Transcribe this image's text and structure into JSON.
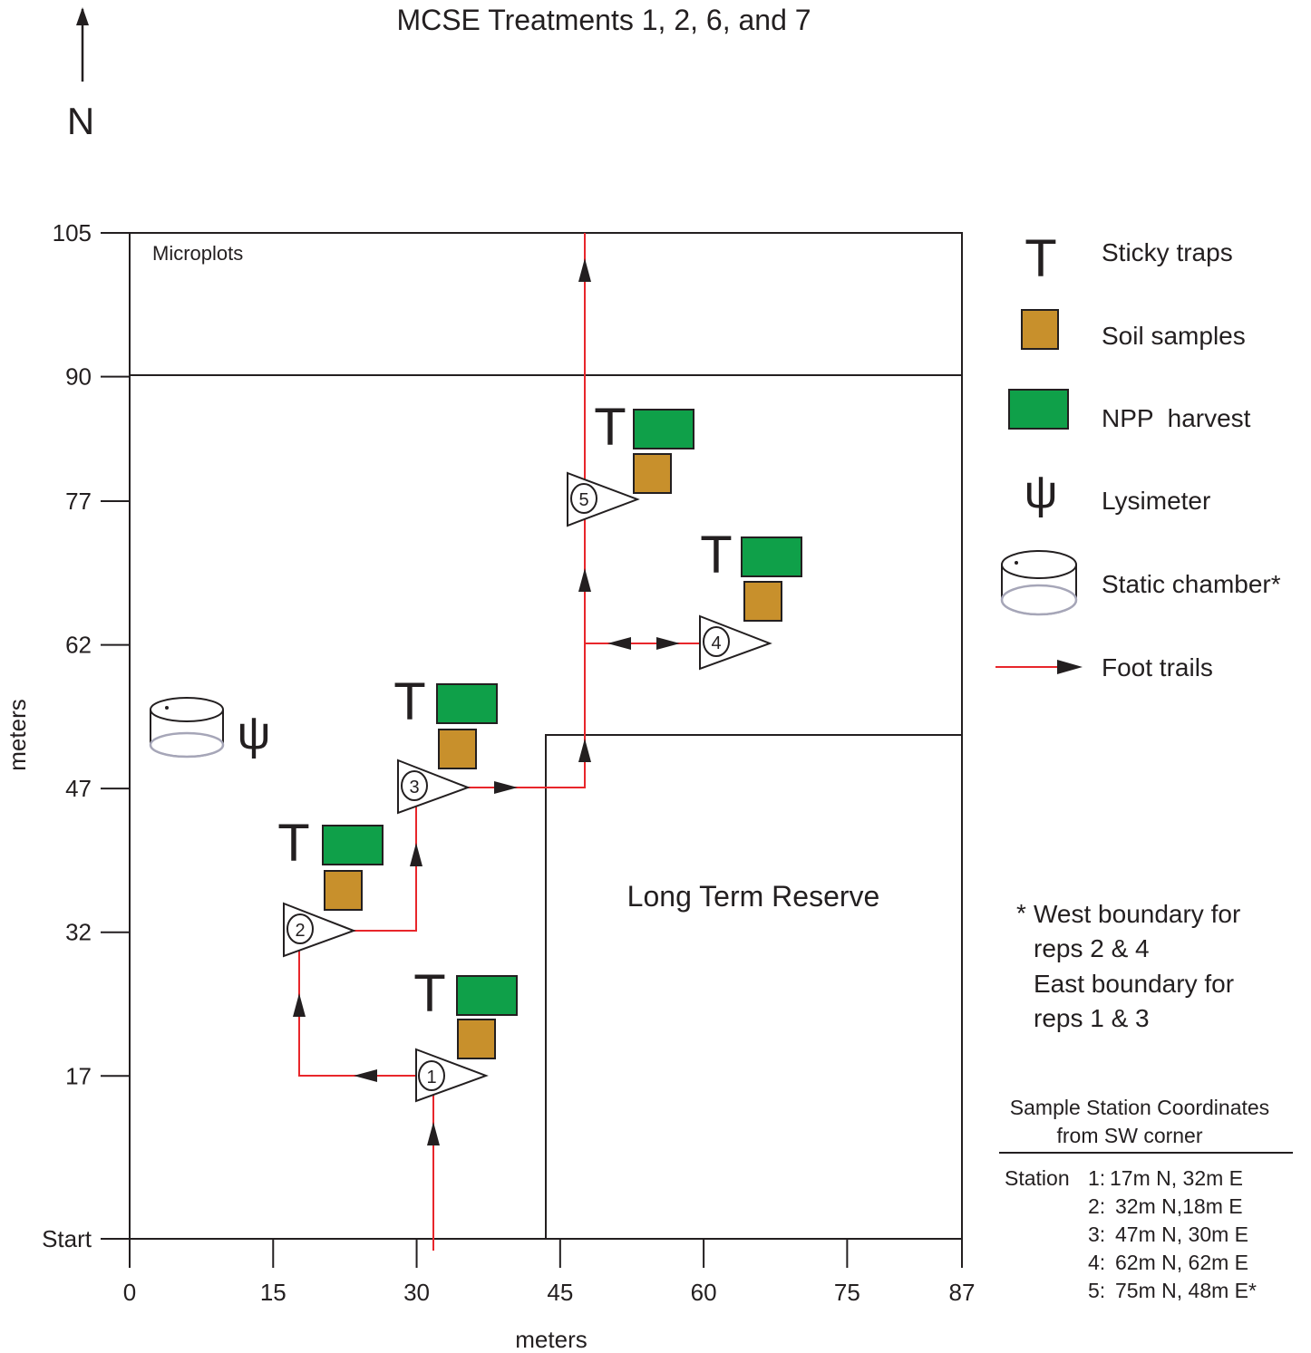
{
  "title": "MCSE Treatments 1, 2, 6, and 7",
  "north_label": "N",
  "x_axis": {
    "label": "meters",
    "ticks": [
      {
        "value": 0,
        "label": "0"
      },
      {
        "value": 15,
        "label": "15"
      },
      {
        "value": 30,
        "label": "30"
      },
      {
        "value": 45,
        "label": "45"
      },
      {
        "value": 60,
        "label": "60"
      },
      {
        "value": 75,
        "label": "75"
      },
      {
        "value": 87,
        "label": "87"
      }
    ]
  },
  "y_axis": {
    "label": "meters",
    "ticks": [
      {
        "value": 0,
        "label": "Start"
      },
      {
        "value": 17,
        "label": "17"
      },
      {
        "value": 32,
        "label": "32"
      },
      {
        "value": 47,
        "label": "47"
      },
      {
        "value": 62,
        "label": "62"
      },
      {
        "value": 77,
        "label": "77"
      },
      {
        "value": 90,
        "label": "90"
      },
      {
        "value": 105,
        "label": "105"
      }
    ]
  },
  "regions": {
    "microplots": "Microplots",
    "long_term_reserve": "Long Term Reserve"
  },
  "stations": [
    {
      "id": "1",
      "label": "1"
    },
    {
      "id": "2",
      "label": "2"
    },
    {
      "id": "3",
      "label": "3"
    },
    {
      "id": "4",
      "label": "4"
    },
    {
      "id": "5",
      "label": "5"
    }
  ],
  "legend": {
    "sticky_traps": "Sticky traps",
    "soil_samples": "Soil samples",
    "npp_harvest": "NPP  harvest",
    "lysimeter": "Lysimeter",
    "static_chamber": "Static chamber*",
    "foot_trails": "Foot trails"
  },
  "symbols": {
    "sticky_trap_glyph": "T",
    "lysimeter_glyph": "ψ",
    "sticky_trap_icon": "sticky-trap-icon",
    "lysimeter_icon": "lysimeter-icon",
    "static_chamber_icon": "static-chamber-icon"
  },
  "note": {
    "asterisk": "*",
    "lines": [
      "West boundary for",
      "reps 2 & 4",
      "East boundary for",
      "reps 1 & 3"
    ]
  },
  "coordinates_table": {
    "title_line1": "Sample Station Coordinates",
    "title_line2": "from SW corner",
    "prefix": "Station",
    "rows": [
      {
        "num": "1:",
        "text": "17m N, 32m E"
      },
      {
        "num": "2:",
        "text": "32m N,18m E"
      },
      {
        "num": "3:",
        "text": "47m N, 30m E"
      },
      {
        "num": "4:",
        "text": "62m N, 62m E"
      },
      {
        "num": "5:",
        "text": "75m N, 48m E*"
      }
    ]
  },
  "colors": {
    "npp_green": "#0fa049",
    "soil_orange": "#c8902c",
    "trail_red": "#e8262b",
    "line_black": "#231f20",
    "chamber_grey": "#a6a6b8"
  }
}
